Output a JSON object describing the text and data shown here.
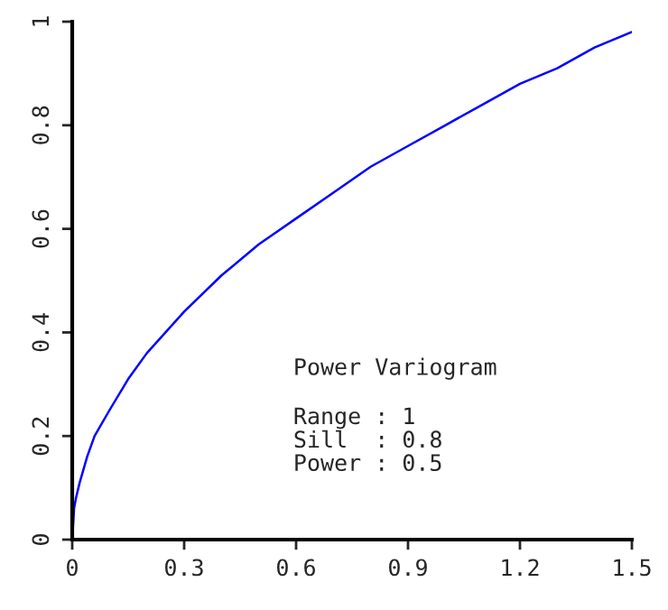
{
  "chart_data": {
    "type": "line",
    "x": [
      0,
      0.005,
      0.01,
      0.02,
      0.04,
      0.06,
      0.1,
      0.15,
      0.2,
      0.3,
      0.4,
      0.5,
      0.6,
      0.7,
      0.8,
      0.9,
      1.0,
      1.1,
      1.2,
      1.3,
      1.4,
      1.5
    ],
    "series": [
      {
        "color": "#0000ff",
        "values": [
          0,
          0.06,
          0.08,
          0.11,
          0.16,
          0.2,
          0.25,
          0.31,
          0.36,
          0.44,
          0.51,
          0.57,
          0.62,
          0.67,
          0.72,
          0.76,
          0.8,
          0.84,
          0.88,
          0.91,
          0.95,
          0.98
        ]
      }
    ],
    "xlim": [
      0,
      1.5
    ],
    "xticks": [
      0,
      0.3,
      0.6,
      0.9,
      1.2,
      1.5
    ],
    "ylim": [
      0,
      1
    ],
    "yticks": [
      0,
      0.2,
      0.4,
      0.6,
      0.8,
      1
    ],
    "annotations": [
      "Power Variogram",
      "Range : 1",
      "Sill  : 0.8",
      "Power : 0.5"
    ],
    "grid": false,
    "legend": false
  }
}
